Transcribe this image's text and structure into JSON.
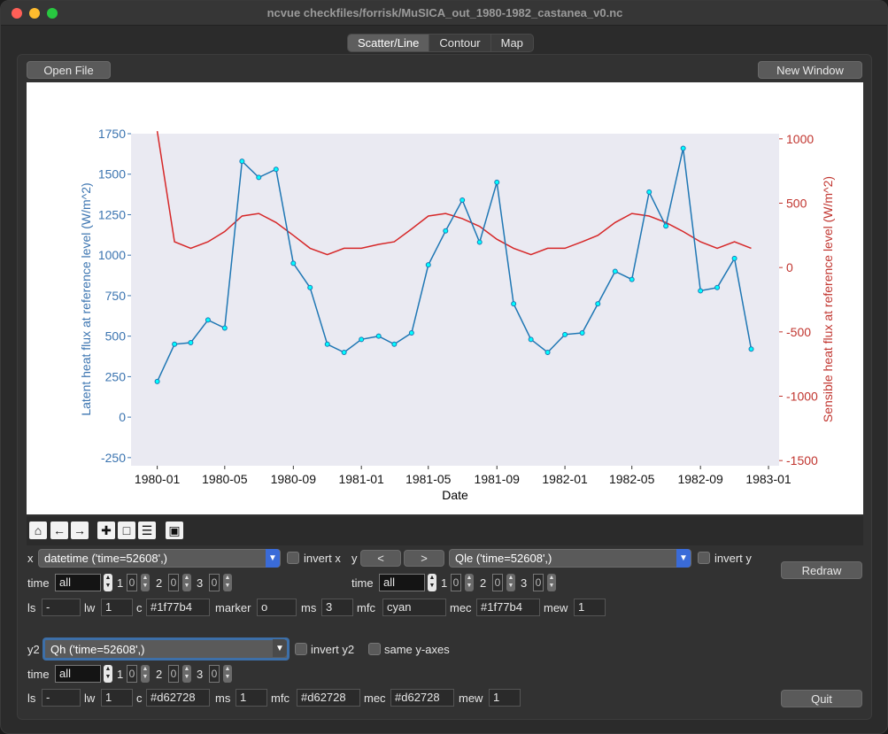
{
  "window": {
    "title": "ncvue checkfiles/forrisk/MuSICA_out_1980-1982_castanea_v0.nc"
  },
  "tabs": [
    {
      "label": "Scatter/Line"
    },
    {
      "label": "Contour"
    },
    {
      "label": "Map"
    }
  ],
  "buttons": {
    "open_file": "Open File",
    "new_window": "New Window",
    "redraw": "Redraw",
    "quit": "Quit",
    "prev": "<",
    "next": ">"
  },
  "chart_data": {
    "type": "line",
    "xlabel": "Date",
    "ylabel_left": "Latent heat flux at reference level (W/m^2)",
    "ylabel_right": "Sensible heat flux at reference level (W/m^2)",
    "x_ticks": [
      "1980-01",
      "1980-05",
      "1980-09",
      "1981-01",
      "1981-05",
      "1981-09",
      "1982-01",
      "1982-05",
      "1982-09",
      "1983-01"
    ],
    "y_left_ticks": [
      -250,
      0,
      250,
      500,
      750,
      1000,
      1250,
      1500,
      1750
    ],
    "y_right_ticks": [
      -1500,
      -1000,
      -500,
      0,
      500,
      1000
    ],
    "ylim_left": [
      -300,
      1750
    ],
    "ylim_right": [
      -1540,
      1040
    ],
    "xlim": [
      "1979-11-15",
      "1983-01-20"
    ],
    "series": [
      {
        "name": "Qle",
        "axis": "left",
        "color": "#1f77b4",
        "marker": "o",
        "mfc": "cyan",
        "mec": "#1f77b4",
        "x": [
          "1980-01",
          "1980-02",
          "1980-03",
          "1980-04",
          "1980-05",
          "1980-06",
          "1980-07",
          "1980-08",
          "1980-09",
          "1980-10",
          "1980-11",
          "1980-12",
          "1981-01",
          "1981-02",
          "1981-03",
          "1981-04",
          "1981-05",
          "1981-06",
          "1981-07",
          "1981-08",
          "1981-09",
          "1981-10",
          "1981-11",
          "1981-12",
          "1982-01",
          "1982-02",
          "1982-03",
          "1982-04",
          "1982-05",
          "1982-06",
          "1982-07",
          "1982-08",
          "1982-09",
          "1982-10",
          "1982-11",
          "1982-12"
        ],
        "y": [
          220,
          450,
          460,
          600,
          550,
          1580,
          1480,
          1530,
          950,
          800,
          450,
          400,
          480,
          500,
          450,
          520,
          940,
          1150,
          1340,
          1080,
          1450,
          700,
          480,
          400,
          510,
          520,
          700,
          900,
          850,
          1390,
          1180,
          1660,
          780,
          800,
          980,
          420
        ]
      },
      {
        "name": "Qh",
        "axis": "right",
        "color": "#d62728",
        "marker": "",
        "x": [
          "1980-01",
          "1980-02",
          "1980-03",
          "1980-04",
          "1980-05",
          "1980-06",
          "1980-07",
          "1980-08",
          "1980-09",
          "1980-10",
          "1980-11",
          "1980-12",
          "1981-01",
          "1981-02",
          "1981-03",
          "1981-04",
          "1981-05",
          "1981-06",
          "1981-07",
          "1981-08",
          "1981-09",
          "1981-10",
          "1981-11",
          "1981-12",
          "1982-01",
          "1982-02",
          "1982-03",
          "1982-04",
          "1982-05",
          "1982-06",
          "1982-07",
          "1982-08",
          "1982-09",
          "1982-10",
          "1982-11",
          "1982-12"
        ],
        "y": [
          1060,
          200,
          150,
          200,
          280,
          400,
          420,
          350,
          250,
          150,
          100,
          150,
          150,
          180,
          200,
          300,
          400,
          420,
          380,
          320,
          220,
          150,
          100,
          150,
          150,
          200,
          250,
          350,
          420,
          400,
          350,
          280,
          200,
          150,
          200,
          150
        ]
      }
    ]
  },
  "toolbar": {
    "icons": [
      "home-icon",
      "back-arrow-icon",
      "forward-arrow-icon",
      "pan-icon",
      "zoom-icon",
      "configure-icon",
      "save-icon"
    ]
  },
  "x_panel": {
    "label": "x",
    "variable": "datetime ('time=52608',)",
    "invert_label": "invert x",
    "time_label": "time",
    "time_value": "all",
    "dims": [
      "1",
      "0",
      "2",
      "0",
      "3",
      "0"
    ]
  },
  "y_panel": {
    "label": "y",
    "variable": "Qle ('time=52608',)",
    "invert_label": "invert y",
    "time_label": "time",
    "time_value": "all",
    "dims": [
      "1",
      "0",
      "2",
      "0",
      "3",
      "0"
    ]
  },
  "style1": {
    "ls_label": "ls",
    "ls": "-",
    "lw_label": "lw",
    "lw": "1",
    "c_label": "c",
    "c": "#1f77b4",
    "marker_label": "marker",
    "marker": "o",
    "ms_label": "ms",
    "ms": "3",
    "mfc_label": "mfc",
    "mfc": "cyan",
    "mec_label": "mec",
    "mec": "#1f77b4",
    "mew_label": "mew",
    "mew": "1"
  },
  "y2_panel": {
    "label": "y2",
    "variable": "Qh ('time=52608',)",
    "invert_label": "invert y2",
    "same_axes_label": "same y-axes",
    "time_label": "time",
    "time_value": "all",
    "dims": [
      "1",
      "0",
      "2",
      "0",
      "3",
      "0"
    ]
  },
  "style2": {
    "ls_label": "ls",
    "ls": "-",
    "lw_label": "lw",
    "lw": "1",
    "c_label": "c",
    "c": "#d62728",
    "ms_label": "ms",
    "ms": "1",
    "mfc_label": "mfc",
    "mfc": "#d62728",
    "mec_label": "mec",
    "mec": "#d62728",
    "mew_label": "mew",
    "mew": "1"
  }
}
